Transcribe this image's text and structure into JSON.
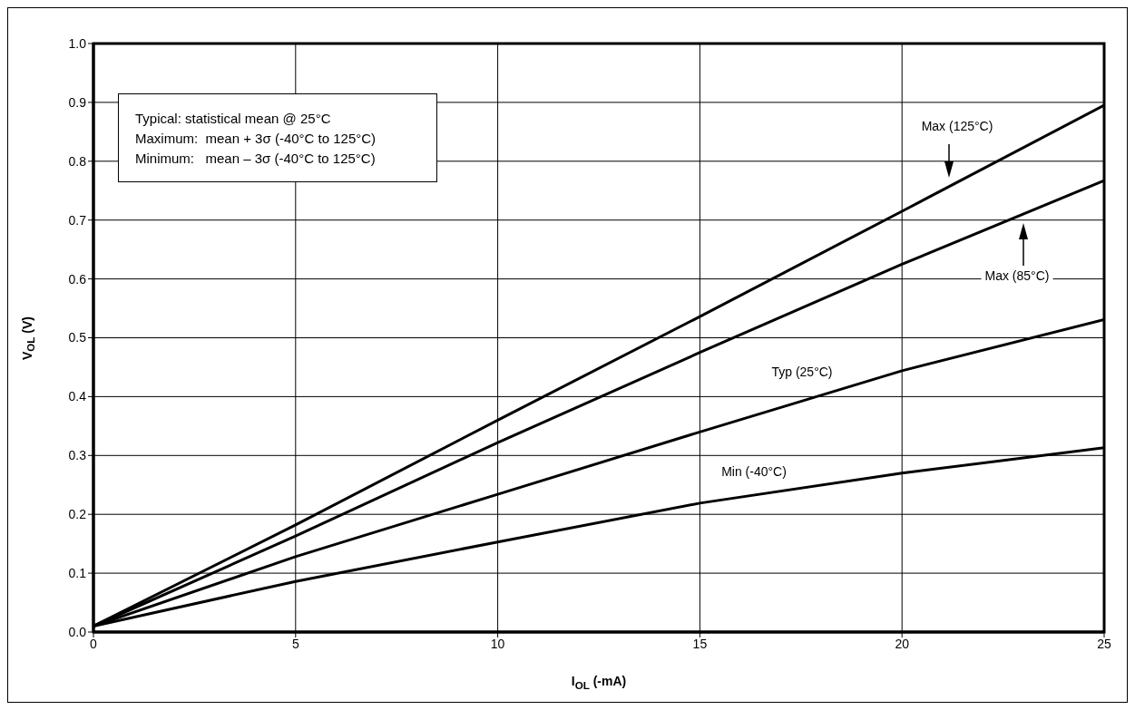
{
  "chart_data": {
    "type": "line",
    "xlabel": "I$_{OL}$ (-mA)",
    "ylabel": "V$_{OL}$ (V)",
    "x": [
      0,
      5,
      10,
      15,
      20,
      25
    ],
    "series": [
      {
        "color": "#000000",
        "values": [
          0.01,
          0.182,
          0.36,
          0.536,
          0.715,
          0.895
        ]
      },
      {
        "color": "#000000",
        "values": [
          0.01,
          0.163,
          0.322,
          0.475,
          0.625,
          0.767
        ]
      },
      {
        "color": "#000000",
        "values": [
          0.01,
          0.128,
          0.234,
          0.34,
          0.444,
          0.531
        ]
      },
      {
        "color": "#000000",
        "values": [
          0.01,
          0.086,
          0.153,
          0.219,
          0.27,
          0.313
        ]
      }
    ],
    "xlim": [
      0,
      25
    ],
    "xticks": [
      0,
      5,
      10,
      15,
      20,
      25
    ],
    "ylim": [
      0,
      1
    ],
    "yticks": [
      {
        "value": 0,
        "label": "0.0"
      },
      {
        "value": 0.1,
        "label": "0.1"
      },
      {
        "value": 0.2,
        "label": "0.2"
      },
      {
        "value": 0.3,
        "label": "0.3"
      },
      {
        "value": 0.4,
        "label": "0.4"
      },
      {
        "value": 0.5,
        "label": "0.5"
      },
      {
        "value": 0.6,
        "label": "0.6"
      },
      {
        "value": 0.7,
        "label": "0.7"
      },
      {
        "value": 0.8,
        "label": "0.8"
      },
      {
        "value": 0.9,
        "label": "0.9"
      },
      {
        "value": 1,
        "label": "1.0"
      }
    ],
    "grid": true,
    "marker": "none",
    "line_style": "solid",
    "annotations": [
      "Max (125°C)",
      "Max (85°C)",
      "Typ (25°C)",
      "Min (-40°C)",
      "Typical: statistical mean @ 25°C",
      "Maximum:  mean + 3σ (-40°C to 125°C)",
      "Minimum:   mean – 3σ (-40°C to 125°C)"
    ]
  }
}
